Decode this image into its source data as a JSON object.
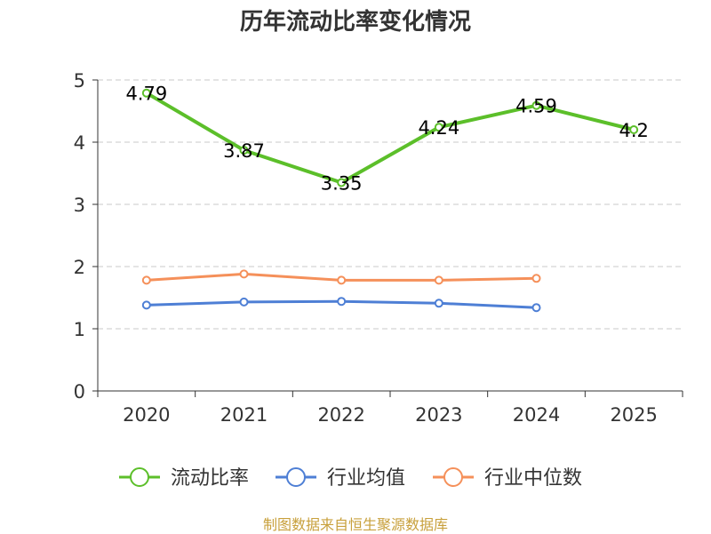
{
  "chart_data": {
    "type": "line",
    "title": "历年流动比率变化情况",
    "categories": [
      "2020",
      "2021",
      "2022",
      "2023",
      "2024",
      "2025"
    ],
    "ylim": [
      0,
      5
    ],
    "yticks": [
      0,
      1,
      2,
      3,
      4,
      5
    ],
    "grid": true,
    "legend_position": "bottom",
    "series": [
      {
        "name": "流动比率",
        "color": "#5cbf2a",
        "values": [
          4.79,
          3.87,
          3.35,
          4.24,
          4.59,
          4.2
        ],
        "labels": [
          "4.79",
          "3.87",
          "3.35",
          "4.24",
          "4.59",
          "4.2"
        ]
      },
      {
        "name": "行业均值",
        "color": "#4e7fd5",
        "values": [
          1.38,
          1.43,
          1.44,
          1.41,
          1.34,
          null
        ]
      },
      {
        "name": "行业中位数",
        "color": "#f5905a",
        "values": [
          1.78,
          1.88,
          1.78,
          1.78,
          1.81,
          null
        ]
      }
    ]
  },
  "source": "制图数据来自恒生聚源数据库"
}
